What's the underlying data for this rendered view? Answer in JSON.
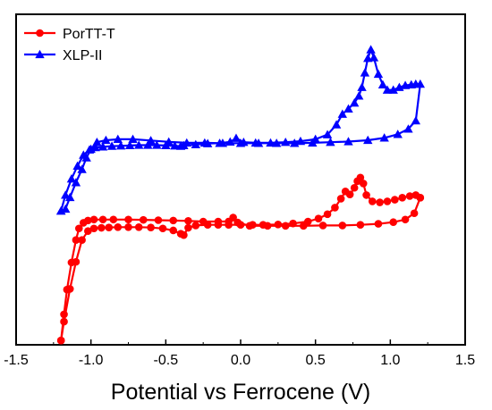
{
  "chart_data": {
    "type": "line",
    "title": "",
    "xlabel": "Potential vs Ferrocene (V)",
    "ylabel": "",
    "xlim": [
      -1.5,
      1.5
    ],
    "ylim": [
      0,
      100
    ],
    "y_ticks_shown": false,
    "x_ticks": [
      -1.5,
      -1.0,
      -0.5,
      0.0,
      0.5,
      1.0,
      1.5
    ],
    "x_tick_labels": [
      "-1.5",
      "-1.0",
      "-0.5",
      "0.0",
      "0.5",
      "1.0",
      "1.5"
    ],
    "grid": false,
    "legend": "top-left",
    "series": [
      {
        "name": "PorTT-T",
        "color": "#ff0000",
        "marker": "circle",
        "x": [
          -1.2,
          -1.18,
          -1.14,
          -1.1,
          -1.06,
          -1.02,
          -0.98,
          -0.93,
          -0.88,
          -0.82,
          -0.75,
          -0.68,
          -0.6,
          -0.52,
          -0.45,
          -0.4,
          -0.38,
          -0.35,
          -0.3,
          -0.22,
          -0.15,
          -0.08,
          0.0,
          0.08,
          0.15,
          0.25,
          0.35,
          0.45,
          0.52,
          0.58,
          0.63,
          0.67,
          0.7,
          0.73,
          0.76,
          0.78,
          0.8,
          0.82,
          0.84,
          0.88,
          0.93,
          0.98,
          1.03,
          1.08,
          1.13,
          1.17,
          1.2,
          1.2,
          1.16,
          1.1,
          1.02,
          0.92,
          0.8,
          0.68,
          0.55,
          0.42,
          0.3,
          0.18,
          0.06,
          -0.02,
          -0.05,
          -0.08,
          -0.15,
          -0.25,
          -0.35,
          -0.45,
          -0.55,
          -0.65,
          -0.75,
          -0.85,
          -0.92,
          -0.98,
          -1.02,
          -1.05,
          -1.08,
          -1.1,
          -1.13,
          -1.16,
          -1.18,
          -1.2
        ],
        "y": [
          1.3,
          7.0,
          16.9,
          25.1,
          31.7,
          34.4,
          35.2,
          35.4,
          35.5,
          35.6,
          35.6,
          35.6,
          35.5,
          35.2,
          34.6,
          33.6,
          33.2,
          35.4,
          36.1,
          36.3,
          36.3,
          36.3,
          36.3,
          36.3,
          36.3,
          36.4,
          36.7,
          37.3,
          38.2,
          39.5,
          41.5,
          44.2,
          46.4,
          45.5,
          47.5,
          49.5,
          50.6,
          48.8,
          45.3,
          43.4,
          43.1,
          43.4,
          43.9,
          44.5,
          45.0,
          45.3,
          44.5,
          44.5,
          39.8,
          37.9,
          37.1,
          36.6,
          36.3,
          36.1,
          36.1,
          36.0,
          36.0,
          36.0,
          36.0,
          37.0,
          38.5,
          37.3,
          37.3,
          37.3,
          37.5,
          37.6,
          37.7,
          37.8,
          37.9,
          37.9,
          37.9,
          37.9,
          37.6,
          36.9,
          35.2,
          31.7,
          24.9,
          16.7,
          9.2,
          1.3
        ]
      },
      {
        "name": "XLP-II",
        "color": "#0000ff",
        "marker": "triangle",
        "x": [
          -1.2,
          -1.17,
          -1.13,
          -1.09,
          -1.05,
          -1.01,
          -0.97,
          -0.92,
          -0.86,
          -0.8,
          -0.74,
          -0.68,
          -0.62,
          -0.56,
          -0.5,
          -0.44,
          -0.4,
          -0.38,
          -0.3,
          -0.22,
          -0.14,
          -0.07,
          -0.03,
          0.02,
          0.1,
          0.2,
          0.3,
          0.4,
          0.5,
          0.58,
          0.64,
          0.68,
          0.72,
          0.76,
          0.79,
          0.81,
          0.83,
          0.85,
          0.87,
          0.89,
          0.92,
          0.95,
          0.98,
          1.02,
          1.06,
          1.1,
          1.14,
          1.17,
          1.2,
          1.17,
          1.12,
          1.05,
          0.96,
          0.85,
          0.72,
          0.6,
          0.48,
          0.36,
          0.24,
          0.12,
          0.0,
          -0.12,
          -0.24,
          -0.36,
          -0.48,
          -0.6,
          -0.72,
          -0.82,
          -0.9,
          -0.96,
          -1.0,
          -1.03,
          -1.06,
          -1.1,
          -1.14,
          -1.17,
          -1.2
        ],
        "y": [
          40.5,
          45.3,
          50.2,
          54.1,
          57.4,
          59.0,
          59.7,
          59.9,
          60.1,
          60.2,
          60.3,
          60.4,
          60.4,
          60.4,
          60.3,
          60.2,
          60.1,
          60.3,
          60.6,
          60.9,
          61.0,
          61.4,
          62.5,
          61.3,
          61.1,
          61.1,
          61.3,
          61.6,
          62.2,
          63.6,
          66.6,
          69.8,
          71.4,
          73.2,
          75.3,
          77.9,
          82.3,
          86.7,
          89.3,
          86.9,
          81.9,
          78.7,
          77.1,
          77.1,
          77.9,
          78.5,
          78.7,
          78.9,
          78.9,
          67.8,
          65.3,
          63.7,
          62.6,
          61.9,
          61.5,
          61.3,
          61.1,
          61.0,
          61.0,
          61.0,
          61.0,
          61.0,
          61.1,
          61.1,
          61.4,
          61.8,
          62.2,
          62.2,
          61.9,
          61.3,
          59.2,
          56.6,
          53.1,
          49.1,
          44.6,
          41.1,
          40.5
        ]
      }
    ]
  }
}
